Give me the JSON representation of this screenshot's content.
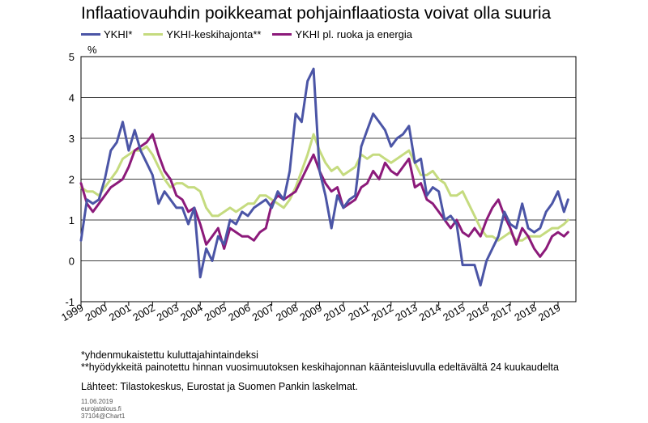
{
  "chart_data": {
    "type": "line",
    "title": "Inflaatiovauhdin poikkeamat pohjainflaatiosta voivat olla suuria",
    "ylabel": "%",
    "ylim": [
      -1,
      5
    ],
    "yticks": [
      "5",
      "4",
      "3",
      "2",
      "1",
      "0",
      "-1"
    ],
    "xlim": [
      1999,
      2019.75
    ],
    "xticks": [
      "1999",
      "2000",
      "2001",
      "2002",
      "2003",
      "2004",
      "2005",
      "2006",
      "2007",
      "2008",
      "2009",
      "2010",
      "2011",
      "2012",
      "2013",
      "2014",
      "2015",
      "2016",
      "2017",
      "2018",
      "2019"
    ],
    "grid": true,
    "legend_position": "top",
    "series": [
      {
        "name": "YKHI*",
        "color": "#4b55a6",
        "x": [
          1999.0,
          1999.25,
          1999.5,
          1999.75,
          2000.0,
          2000.25,
          2000.5,
          2000.75,
          2001.0,
          2001.25,
          2001.5,
          2001.75,
          2002.0,
          2002.25,
          2002.5,
          2002.75,
          2003.0,
          2003.25,
          2003.5,
          2003.75,
          2004.0,
          2004.25,
          2004.5,
          2004.75,
          2005.0,
          2005.25,
          2005.5,
          2005.75,
          2006.0,
          2006.25,
          2006.5,
          2006.75,
          2007.0,
          2007.25,
          2007.5,
          2007.75,
          2008.0,
          2008.25,
          2008.5,
          2008.75,
          2009.0,
          2009.25,
          2009.5,
          2009.75,
          2010.0,
          2010.25,
          2010.5,
          2010.75,
          2011.0,
          2011.25,
          2011.5,
          2011.75,
          2012.0,
          2012.25,
          2012.5,
          2012.75,
          2013.0,
          2013.25,
          2013.5,
          2013.75,
          2014.0,
          2014.25,
          2014.5,
          2014.75,
          2015.0,
          2015.25,
          2015.5,
          2015.75,
          2016.0,
          2016.25,
          2016.5,
          2016.75,
          2017.0,
          2017.25,
          2017.5,
          2017.75,
          2018.0,
          2018.25,
          2018.5,
          2018.75,
          2019.0,
          2019.25,
          2019.42
        ],
        "y": [
          0.5,
          1.5,
          1.4,
          1.5,
          2.0,
          2.7,
          2.9,
          3.4,
          2.7,
          3.2,
          2.7,
          2.4,
          2.1,
          1.4,
          1.7,
          1.5,
          1.3,
          1.3,
          0.9,
          1.3,
          -0.4,
          0.3,
          0.0,
          0.6,
          0.4,
          1.0,
          0.9,
          1.2,
          1.1,
          1.3,
          1.4,
          1.5,
          1.3,
          1.7,
          1.5,
          2.2,
          3.6,
          3.4,
          4.4,
          4.7,
          2.2,
          1.6,
          0.8,
          1.6,
          1.3,
          1.5,
          1.6,
          2.8,
          3.2,
          3.6,
          3.4,
          3.2,
          2.8,
          3.0,
          3.1,
          3.3,
          2.4,
          2.5,
          1.6,
          1.8,
          1.7,
          1.0,
          1.1,
          0.9,
          -0.1,
          -0.1,
          -0.1,
          -0.6,
          0.0,
          0.3,
          0.6,
          1.2,
          0.9,
          0.8,
          1.4,
          0.8,
          0.7,
          0.8,
          1.2,
          1.4,
          1.7,
          1.2,
          1.5
        ]
      },
      {
        "name": "YKHI-keskihajonta**",
        "color": "#c5db7f",
        "x": [
          1999.0,
          1999.25,
          1999.5,
          1999.75,
          2000.0,
          2000.25,
          2000.5,
          2000.75,
          2001.0,
          2001.25,
          2001.5,
          2001.75,
          2002.0,
          2002.25,
          2002.5,
          2002.75,
          2003.0,
          2003.25,
          2003.5,
          2003.75,
          2004.0,
          2004.25,
          2004.5,
          2004.75,
          2005.0,
          2005.25,
          2005.5,
          2005.75,
          2006.0,
          2006.25,
          2006.5,
          2006.75,
          2007.0,
          2007.25,
          2007.5,
          2007.75,
          2008.0,
          2008.25,
          2008.5,
          2008.75,
          2009.0,
          2009.25,
          2009.5,
          2009.75,
          2010.0,
          2010.25,
          2010.5,
          2010.75,
          2011.0,
          2011.25,
          2011.5,
          2011.75,
          2012.0,
          2012.25,
          2012.5,
          2012.75,
          2013.0,
          2013.25,
          2013.5,
          2013.75,
          2014.0,
          2014.25,
          2014.5,
          2014.75,
          2015.0,
          2015.25,
          2015.5,
          2015.75,
          2016.0,
          2016.25,
          2016.5,
          2016.75,
          2017.0,
          2017.25,
          2017.5,
          2017.75,
          2018.0,
          2018.25,
          2018.5,
          2018.75,
          2019.0,
          2019.25,
          2019.42
        ],
        "y": [
          1.8,
          1.7,
          1.7,
          1.6,
          1.8,
          2.0,
          2.2,
          2.5,
          2.6,
          2.7,
          2.7,
          2.8,
          2.6,
          2.3,
          2.0,
          1.8,
          1.9,
          1.9,
          1.8,
          1.8,
          1.7,
          1.3,
          1.1,
          1.1,
          1.2,
          1.3,
          1.2,
          1.3,
          1.4,
          1.4,
          1.6,
          1.6,
          1.5,
          1.4,
          1.3,
          1.5,
          1.8,
          2.2,
          2.6,
          3.1,
          2.7,
          2.4,
          2.2,
          2.3,
          2.1,
          2.2,
          2.3,
          2.6,
          2.5,
          2.6,
          2.6,
          2.5,
          2.4,
          2.5,
          2.6,
          2.7,
          2.4,
          2.1,
          2.1,
          2.2,
          2.0,
          1.9,
          1.6,
          1.6,
          1.7,
          1.4,
          1.1,
          0.8,
          0.6,
          0.6,
          0.5,
          0.6,
          0.7,
          0.5,
          0.5,
          0.6,
          0.6,
          0.6,
          0.7,
          0.8,
          0.8,
          0.9,
          1.0
        ]
      },
      {
        "name": "YKHI pl. ruoka ja energia",
        "color": "#8c1a7a",
        "x": [
          1999.0,
          1999.25,
          1999.5,
          1999.75,
          2000.0,
          2000.25,
          2000.5,
          2000.75,
          2001.0,
          2001.25,
          2001.5,
          2001.75,
          2002.0,
          2002.25,
          2002.5,
          2002.75,
          2003.0,
          2003.25,
          2003.5,
          2003.75,
          2004.0,
          2004.25,
          2004.5,
          2004.75,
          2005.0,
          2005.25,
          2005.5,
          2005.75,
          2006.0,
          2006.25,
          2006.5,
          2006.75,
          2007.0,
          2007.25,
          2007.5,
          2007.75,
          2008.0,
          2008.25,
          2008.5,
          2008.75,
          2009.0,
          2009.25,
          2009.5,
          2009.75,
          2010.0,
          2010.25,
          2010.5,
          2010.75,
          2011.0,
          2011.25,
          2011.5,
          2011.75,
          2012.0,
          2012.25,
          2012.5,
          2012.75,
          2013.0,
          2013.25,
          2013.5,
          2013.75,
          2014.0,
          2014.25,
          2014.5,
          2014.75,
          2015.0,
          2015.25,
          2015.5,
          2015.75,
          2016.0,
          2016.25,
          2016.5,
          2016.75,
          2017.0,
          2017.25,
          2017.5,
          2017.75,
          2018.0,
          2018.25,
          2018.5,
          2018.75,
          2019.0,
          2019.25,
          2019.42
        ],
        "y": [
          1.9,
          1.4,
          1.2,
          1.4,
          1.6,
          1.8,
          1.9,
          2.0,
          2.3,
          2.7,
          2.8,
          2.9,
          3.1,
          2.6,
          2.2,
          2.0,
          1.6,
          1.5,
          1.2,
          1.3,
          0.9,
          0.4,
          0.6,
          0.8,
          0.3,
          0.8,
          0.7,
          0.6,
          0.6,
          0.5,
          0.7,
          0.8,
          1.4,
          1.6,
          1.5,
          1.6,
          1.7,
          2.0,
          2.3,
          2.6,
          2.2,
          1.9,
          1.7,
          1.8,
          1.3,
          1.4,
          1.5,
          1.8,
          1.9,
          2.2,
          2.0,
          2.4,
          2.2,
          2.1,
          2.3,
          2.5,
          1.8,
          1.9,
          1.5,
          1.4,
          1.2,
          1.0,
          0.8,
          1.0,
          0.7,
          0.6,
          0.8,
          0.6,
          1.0,
          1.3,
          1.5,
          1.1,
          0.8,
          0.4,
          0.8,
          0.6,
          0.3,
          0.1,
          0.3,
          0.6,
          0.7,
          0.6,
          0.7
        ]
      }
    ]
  },
  "footnotes": {
    "note1": "*yhdenmukaistettu kuluttajahintaindeksi",
    "note2": "**hyödykkeitä painotettu hinnan vuosimuutoksen keskihajonnan käänteisluvulla edeltävältä 24 kuukaudelta",
    "sources": "Lähteet: Tilastokeskus, Eurostat ja Suomen Pankin laskelmat.",
    "date": "11.06.2019",
    "site": "eurojatalous.fi",
    "chart_id": "37104@Chart1"
  }
}
